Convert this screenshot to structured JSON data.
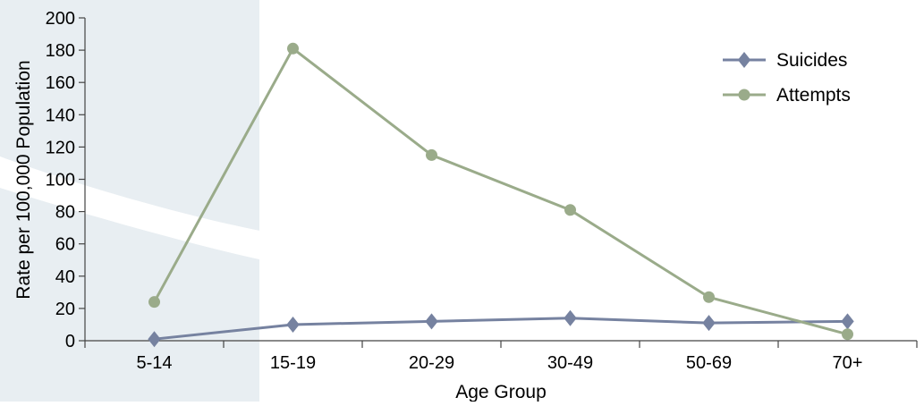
{
  "chart_data": {
    "type": "line",
    "xlabel": "Age Group",
    "ylabel": "Rate per 100,000 Population",
    "categories": [
      "5-14",
      "15-19",
      "20-29",
      "30-49",
      "50-69",
      "70+"
    ],
    "ylim": [
      0,
      200
    ],
    "yticks": [
      0,
      20,
      40,
      60,
      80,
      100,
      120,
      140,
      160,
      180,
      200
    ],
    "grid": false,
    "legend_position": "top-right",
    "series": [
      {
        "name": "Suicides",
        "marker": "diamond",
        "color": "#7682a0",
        "values": [
          1,
          10,
          12,
          14,
          11,
          12
        ]
      },
      {
        "name": "Attempts",
        "marker": "circle",
        "color": "#9aab8a",
        "values": [
          24,
          181,
          115,
          81,
          27,
          4
        ]
      }
    ]
  },
  "background": {
    "swoosh_color": "#e8eef2"
  }
}
